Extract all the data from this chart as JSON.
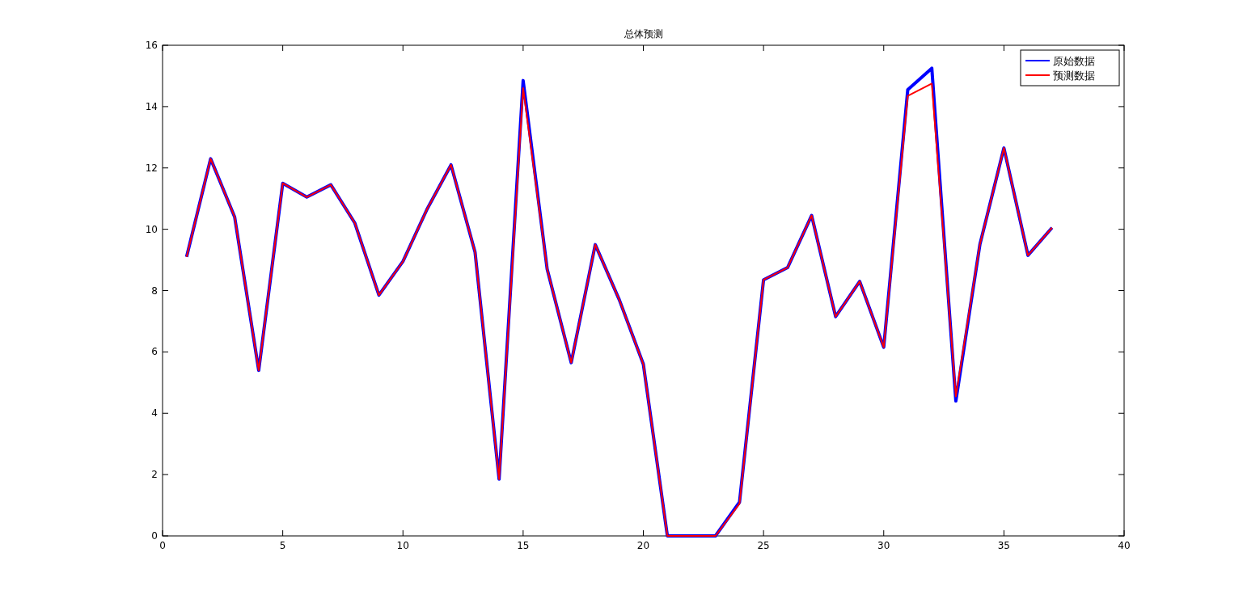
{
  "chart_data": {
    "type": "line",
    "title": "总体预测",
    "x": [
      1,
      2,
      3,
      4,
      5,
      6,
      7,
      8,
      9,
      10,
      11,
      12,
      13,
      14,
      15,
      16,
      17,
      18,
      19,
      20,
      21,
      22,
      23,
      24,
      25,
      26,
      27,
      28,
      29,
      30,
      31,
      32,
      33,
      34,
      35,
      36,
      37
    ],
    "series": [
      {
        "name": "原始数据",
        "color": "#0000ff",
        "values": [
          9.1,
          12.3,
          10.4,
          5.4,
          11.5,
          11.05,
          11.45,
          10.2,
          7.85,
          8.95,
          10.65,
          12.1,
          9.25,
          1.85,
          14.85,
          8.7,
          5.65,
          9.5,
          7.7,
          5.6,
          0,
          0,
          0,
          1.1,
          8.35,
          8.75,
          10.45,
          7.15,
          8.3,
          6.15,
          14.55,
          15.25,
          4.4,
          9.5,
          12.65,
          9.15,
          10.05
        ]
      },
      {
        "name": "预测数据",
        "color": "#ff0000",
        "values": [
          9.1,
          12.3,
          10.4,
          5.4,
          11.5,
          11.05,
          11.45,
          10.2,
          7.85,
          8.95,
          10.65,
          12.1,
          9.25,
          1.85,
          14.6,
          8.7,
          5.65,
          9.5,
          7.7,
          5.6,
          0,
          0,
          0,
          1.05,
          8.35,
          8.75,
          10.45,
          7.15,
          8.3,
          6.15,
          14.35,
          14.75,
          4.55,
          9.5,
          12.65,
          9.15,
          10.05
        ]
      }
    ],
    "xlim": [
      0,
      40
    ],
    "xticks": [
      0,
      5,
      10,
      15,
      20,
      25,
      30,
      35,
      40
    ],
    "ylim": [
      0,
      16
    ],
    "yticks": [
      0,
      2,
      4,
      6,
      8,
      10,
      12,
      14,
      16
    ],
    "legend": "top right"
  }
}
